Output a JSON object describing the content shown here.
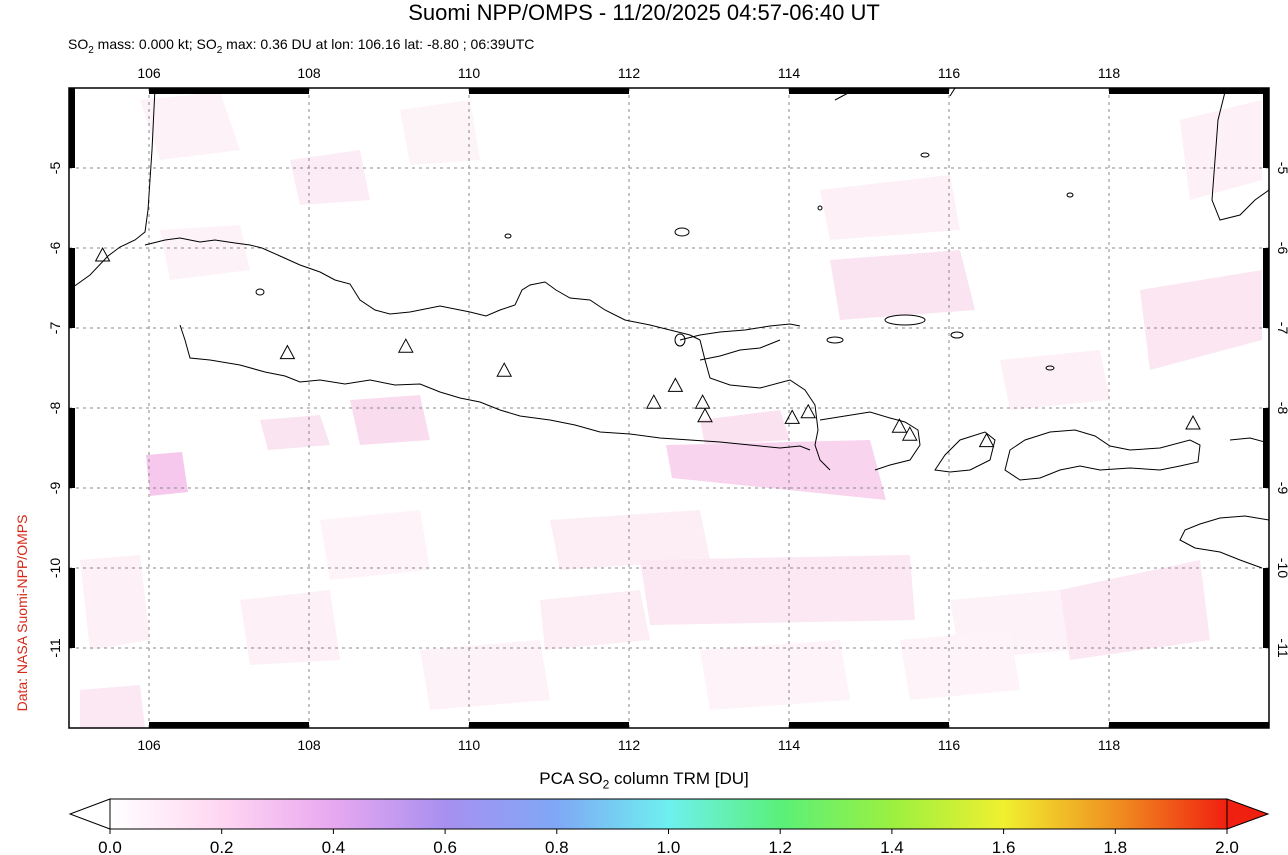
{
  "title": "Suomi NPP/OMPS - 11/20/2025 04:57-06:40 UT",
  "subtitle": {
    "mass_prefix": "SO",
    "mass_sub": "2",
    "mass_text": " mass: 0.000 kt; SO",
    "max_sub": "2",
    "max_text": " max: 0.36 DU at lon: 106.16 lat: -8.80 ; 06:39UTC"
  },
  "credit": "Data: NASA Suomi-NPP/OMPS",
  "map": {
    "lon_range": [
      105,
      120
    ],
    "lat_range": [
      -12,
      -4
    ],
    "lon_ticks": [
      106,
      108,
      110,
      112,
      114,
      116,
      118
    ],
    "lat_ticks": [
      -5,
      -6,
      -7,
      -8,
      -9,
      -10,
      -11
    ],
    "grid": true,
    "volcanoes": [
      {
        "lon": 105.42,
        "lat": -6.1
      },
      {
        "lon": 107.73,
        "lat": -7.32
      },
      {
        "lon": 109.21,
        "lat": -7.24
      },
      {
        "lon": 110.44,
        "lat": -7.54
      },
      {
        "lon": 112.31,
        "lat": -7.94
      },
      {
        "lon": 112.58,
        "lat": -7.73
      },
      {
        "lon": 112.92,
        "lat": -7.94
      },
      {
        "lon": 112.95,
        "lat": -8.11
      },
      {
        "lon": 114.04,
        "lat": -8.13
      },
      {
        "lon": 114.24,
        "lat": -8.06
      },
      {
        "lon": 115.38,
        "lat": -8.24
      },
      {
        "lon": 115.51,
        "lat": -8.34
      },
      {
        "lon": 116.47,
        "lat": -8.42
      },
      {
        "lon": 119.05,
        "lat": -8.2
      }
    ]
  },
  "colorbar": {
    "title_prefix": "PCA SO",
    "title_sub": "2",
    "title_suffix": " column TRM [DU]",
    "ticks": [
      "0.0",
      "0.2",
      "0.4",
      "0.6",
      "0.8",
      "1.0",
      "1.2",
      "1.4",
      "1.6",
      "1.8",
      "2.0"
    ],
    "colors": [
      "#ffffff",
      "#ffd6f2",
      "#e8a8f0",
      "#a890f0",
      "#7fa8f5",
      "#6ef0f0",
      "#5af07a",
      "#9af040",
      "#f0f030",
      "#f09020",
      "#f02010"
    ]
  }
}
